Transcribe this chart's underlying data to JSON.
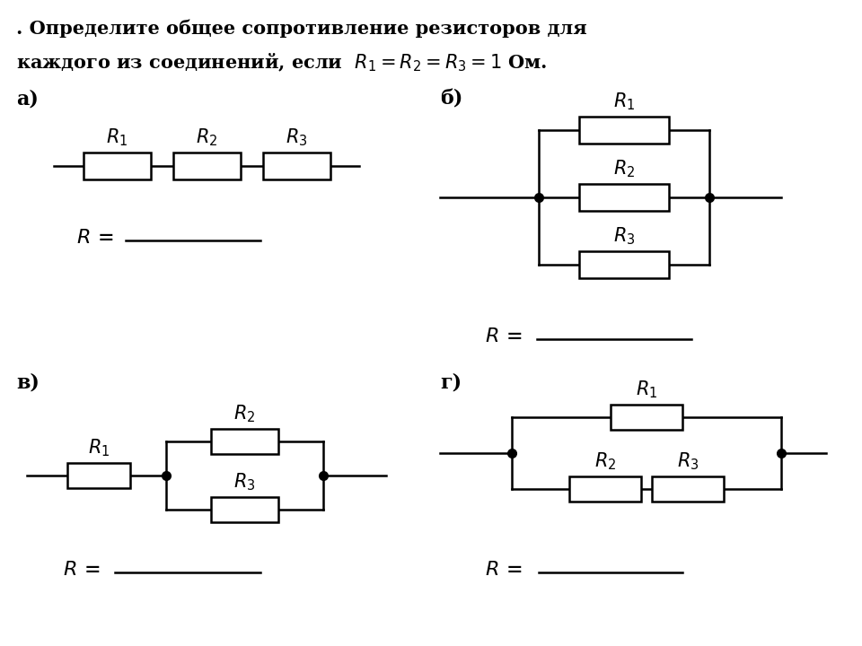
{
  "bg_color": "#ffffff",
  "lw": 1.8,
  "dot_size": 7,
  "title1": ". Определите общее сопротивление резисторов для",
  "title2": "каждого из соединений, если  $R_1 = R_2 = R_3 = 1$ Ом.",
  "label_a": "а)",
  "label_b": "б)",
  "label_v": "в)",
  "label_g": "г)"
}
